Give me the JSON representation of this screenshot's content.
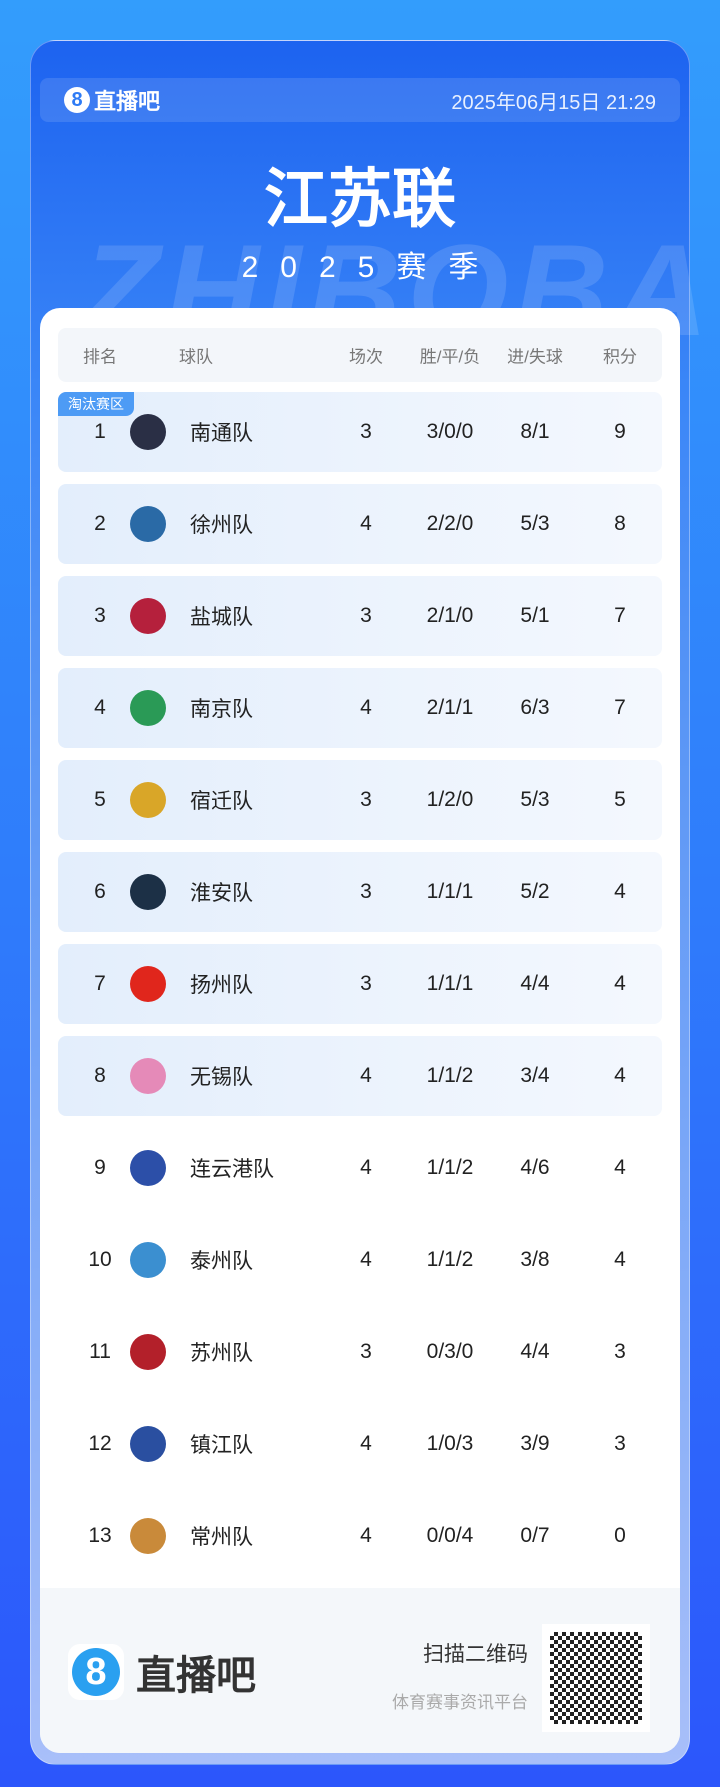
{
  "header": {
    "brand": "直播吧",
    "brand_icon": "8",
    "datetime": "2025年06月15日 21:29",
    "watermark": "ZHIBOBA",
    "title": "江苏联",
    "season": "2025赛季"
  },
  "table": {
    "columns": [
      "排名",
      "球队",
      "场次",
      "胜/平/负",
      "进/失球",
      "积分"
    ],
    "zone_label": "淘汰赛区",
    "highlight_color": "#e3eefc",
    "rows": [
      {
        "rank": "1",
        "team": "南通队",
        "played": "3",
        "wdl": "3/0/0",
        "goals": "8/1",
        "pts": "9",
        "logo_color": "#2a2f45"
      },
      {
        "rank": "2",
        "team": "徐州队",
        "played": "4",
        "wdl": "2/2/0",
        "goals": "5/3",
        "pts": "8",
        "logo_color": "#2a6aa6"
      },
      {
        "rank": "3",
        "team": "盐城队",
        "played": "3",
        "wdl": "2/1/0",
        "goals": "5/1",
        "pts": "7",
        "logo_color": "#b5203c"
      },
      {
        "rank": "4",
        "team": "南京队",
        "played": "4",
        "wdl": "2/1/1",
        "goals": "6/3",
        "pts": "7",
        "logo_color": "#2a9a56"
      },
      {
        "rank": "5",
        "team": "宿迁队",
        "played": "3",
        "wdl": "1/2/0",
        "goals": "5/3",
        "pts": "5",
        "logo_color": "#d9a628"
      },
      {
        "rank": "6",
        "team": "淮安队",
        "played": "3",
        "wdl": "1/1/1",
        "goals": "5/2",
        "pts": "4",
        "logo_color": "#1c3046"
      },
      {
        "rank": "7",
        "team": "扬州队",
        "played": "3",
        "wdl": "1/1/1",
        "goals": "4/4",
        "pts": "4",
        "logo_color": "#e0261c"
      },
      {
        "rank": "8",
        "team": "无锡队",
        "played": "4",
        "wdl": "1/1/2",
        "goals": "3/4",
        "pts": "4",
        "logo_color": "#e58ab8"
      },
      {
        "rank": "9",
        "team": "连云港队",
        "played": "4",
        "wdl": "1/1/2",
        "goals": "4/6",
        "pts": "4",
        "logo_color": "#2c4fa8"
      },
      {
        "rank": "10",
        "team": "泰州队",
        "played": "4",
        "wdl": "1/1/2",
        "goals": "3/8",
        "pts": "4",
        "logo_color": "#3b8fd0"
      },
      {
        "rank": "11",
        "team": "苏州队",
        "played": "3",
        "wdl": "0/3/0",
        "goals": "4/4",
        "pts": "3",
        "logo_color": "#b3202a"
      },
      {
        "rank": "12",
        "team": "镇江队",
        "played": "4",
        "wdl": "1/0/3",
        "goals": "3/9",
        "pts": "3",
        "logo_color": "#2a4fa0"
      },
      {
        "rank": "13",
        "team": "常州队",
        "played": "4",
        "wdl": "0/0/4",
        "goals": "0/7",
        "pts": "0",
        "logo_color": "#c98a3a"
      }
    ]
  },
  "footer": {
    "brand": "直播吧",
    "brand_icon": "8",
    "scan": "扫描二维码",
    "tagline": "体育赛事资讯平台"
  }
}
